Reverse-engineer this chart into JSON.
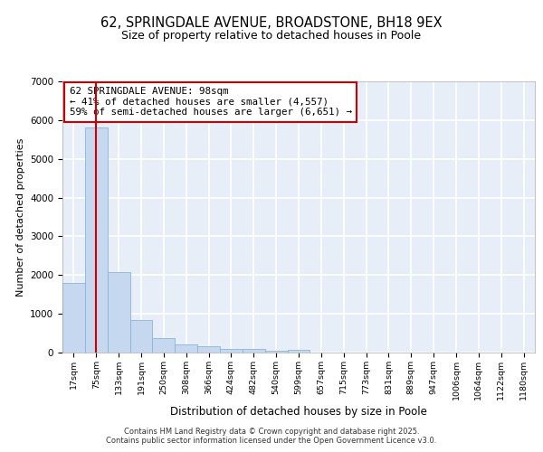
{
  "title_line1": "62, SPRINGDALE AVENUE, BROADSTONE, BH18 9EX",
  "title_line2": "Size of property relative to detached houses in Poole",
  "xlabel": "Distribution of detached houses by size in Poole",
  "ylabel": "Number of detached properties",
  "categories": [
    "17sqm",
    "75sqm",
    "133sqm",
    "191sqm",
    "250sqm",
    "308sqm",
    "366sqm",
    "424sqm",
    "482sqm",
    "540sqm",
    "599sqm",
    "657sqm",
    "715sqm",
    "773sqm",
    "831sqm",
    "889sqm",
    "947sqm",
    "1006sqm",
    "1064sqm",
    "1122sqm",
    "1180sqm"
  ],
  "values": [
    1800,
    5800,
    2080,
    830,
    370,
    220,
    175,
    105,
    95,
    55,
    80,
    0,
    0,
    0,
    0,
    0,
    0,
    0,
    0,
    0,
    0
  ],
  "bar_color": "#c5d8f0",
  "bar_edge_color": "#8ab4d8",
  "vline_color": "#cc0000",
  "vline_position": 1.5,
  "annotation_title": "62 SPRINGDALE AVENUE: 98sqm",
  "annotation_line2": "← 41% of detached houses are smaller (4,557)",
  "annotation_line3": "59% of semi-detached houses are larger (6,651) →",
  "ylim": [
    0,
    7000
  ],
  "yticks": [
    0,
    1000,
    2000,
    3000,
    4000,
    5000,
    6000,
    7000
  ],
  "bg_color": "#e8eef8",
  "grid_color": "#ffffff",
  "footer_line1": "Contains HM Land Registry data © Crown copyright and database right 2025.",
  "footer_line2": "Contains public sector information licensed under the Open Government Licence v3.0."
}
